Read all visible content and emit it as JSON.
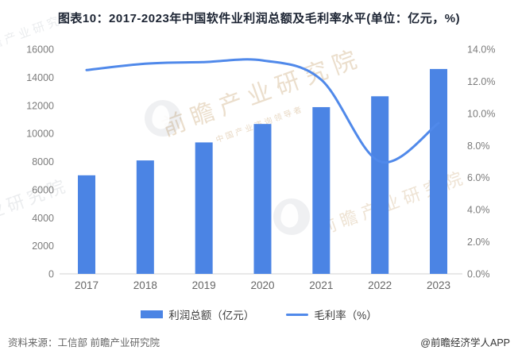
{
  "title": "图表10：2017-2023年中国软件业利润总额及毛利率水平(单位：亿元，%)",
  "footer": {
    "source": "资料来源：工信部 前瞻产业研究院",
    "credit": "@前瞻经济学人APP"
  },
  "watermark": {
    "brand": "前瞻产业研究院",
    "brand_short": "产业研究院",
    "tagline": "中国产业咨询领导者"
  },
  "colors": {
    "bar": "#4b84e4",
    "line": "#5089ea",
    "axis_text": "#7b7b7b",
    "category_text": "#666666",
    "baseline": "#d9d9d9",
    "title_text": "#1c2433"
  },
  "chart_data": {
    "type": "bar",
    "subtype": "combo-bar-line-dual-axis",
    "title": "图表10：2017-2023年中国软件业利润总额及毛利率水平(单位：亿元，%)",
    "categories": [
      "2017",
      "2018",
      "2019",
      "2020",
      "2021",
      "2022",
      "2023"
    ],
    "series": [
      {
        "name": "利润总额（亿元）",
        "type": "bar",
        "axis": "left",
        "values": [
          7020,
          8079,
          9362,
          10676,
          11875,
          12648,
          14592
        ]
      },
      {
        "name": "毛利率（%）",
        "type": "line",
        "axis": "right",
        "values": [
          12.7,
          13.1,
          13.2,
          13.3,
          12.1,
          7.0,
          9.4
        ]
      }
    ],
    "left_axis": {
      "min": 0,
      "max": 16000,
      "ticks": [
        "0",
        "2000",
        "4000",
        "6000",
        "8000",
        "10000",
        "12000",
        "14000",
        "16000"
      ]
    },
    "right_axis": {
      "min": 0,
      "max": 14,
      "ticks": [
        "0.0%",
        "2.0%",
        "4.0%",
        "6.0%",
        "8.0%",
        "10.0%",
        "12.0%",
        "14.0%"
      ]
    },
    "grid": false,
    "legend_position": "bottom",
    "xlabel": "",
    "ylabel_left": "亿元",
    "ylabel_right": "%"
  }
}
